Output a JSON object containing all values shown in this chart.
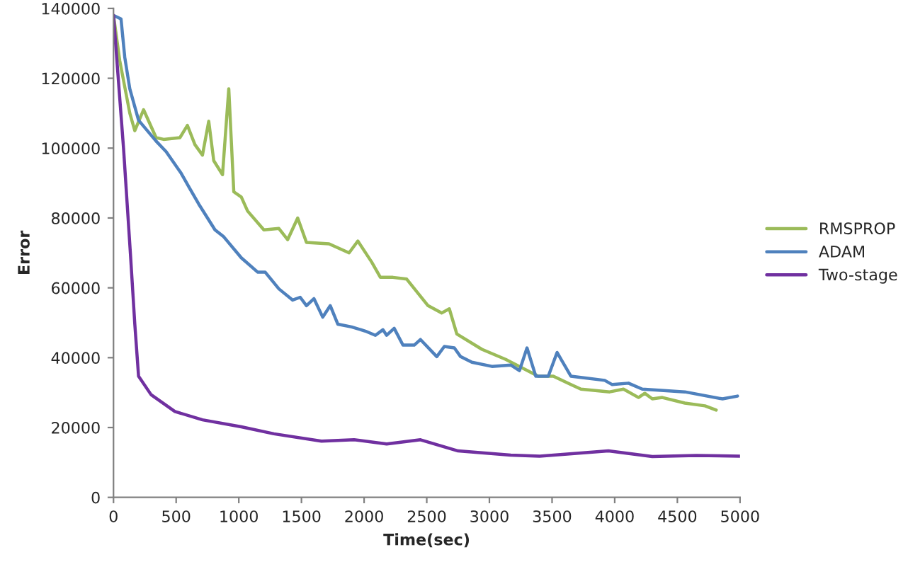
{
  "chart_data": {
    "type": "line",
    "xlabel": "Time(sec)",
    "ylabel": "Error",
    "xlim": [
      0,
      5000
    ],
    "ylim": [
      0,
      140000
    ],
    "xticks": [
      0,
      500,
      1000,
      1500,
      2000,
      2500,
      3000,
      3500,
      4000,
      4500,
      5000
    ],
    "yticks": [
      0,
      20000,
      40000,
      60000,
      80000,
      100000,
      120000,
      140000
    ],
    "grid": false,
    "legend": "right",
    "marker": "none",
    "line_style": "solid",
    "series": [
      {
        "name": "RMSPROP",
        "color": "#9bbb59",
        "x": [
          0,
          50,
          130,
          170,
          240,
          340,
          400,
          530,
          590,
          650,
          710,
          760,
          800,
          870,
          920,
          960,
          1020,
          1070,
          1200,
          1320,
          1390,
          1470,
          1540,
          1720,
          1880,
          1950,
          2060,
          2130,
          2230,
          2340,
          2510,
          2620,
          2680,
          2740,
          2940,
          3130,
          3390,
          3510,
          3650,
          3730,
          3960,
          4070,
          4190,
          4240,
          4300,
          4380,
          4560,
          4720,
          4810
        ],
        "values": [
          138000,
          125000,
          110000,
          105000,
          111000,
          103000,
          102500,
          103000,
          106500,
          101000,
          98000,
          107700,
          96400,
          92400,
          117000,
          87500,
          86000,
          82000,
          76600,
          77000,
          73800,
          80000,
          73000,
          72600,
          70000,
          73400,
          67400,
          63000,
          63000,
          62500,
          54900,
          52800,
          54000,
          46800,
          42400,
          39500,
          34700,
          34700,
          32300,
          31000,
          30200,
          31000,
          28600,
          29800,
          28200,
          28600,
          27000,
          26200,
          25000
        ]
      },
      {
        "name": "ADAM",
        "color": "#4f81bd",
        "x": [
          0,
          60,
          90,
          130,
          200,
          340,
          420,
          540,
          600,
          680,
          810,
          880,
          1020,
          1150,
          1210,
          1320,
          1430,
          1490,
          1540,
          1600,
          1670,
          1730,
          1790,
          1900,
          2010,
          2090,
          2150,
          2180,
          2240,
          2310,
          2400,
          2450,
          2580,
          2640,
          2720,
          2770,
          2860,
          3020,
          3170,
          3240,
          3300,
          3370,
          3470,
          3540,
          3650,
          3920,
          3980,
          4110,
          4220,
          4560,
          4860,
          4980
        ],
        "values": [
          138000,
          137000,
          126000,
          117000,
          108000,
          102000,
          99000,
          92800,
          89000,
          84000,
          76600,
          74600,
          68600,
          64500,
          64500,
          59700,
          56500,
          57300,
          54900,
          56900,
          51600,
          54900,
          49600,
          48800,
          47600,
          46400,
          48000,
          46400,
          48400,
          43600,
          43600,
          45200,
          40300,
          43200,
          42800,
          40300,
          38700,
          37500,
          37900,
          36300,
          42800,
          34700,
          34700,
          41500,
          34700,
          33500,
          32300,
          32700,
          31000,
          30200,
          28200,
          29000
        ]
      },
      {
        "name": "Two-stage",
        "color": "#7030a0",
        "x": [
          0,
          80,
          135,
          170,
          200,
          300,
          490,
          710,
          1020,
          1280,
          1660,
          1920,
          2180,
          2450,
          2750,
          3170,
          3400,
          3950,
          4300,
          4650,
          5000
        ],
        "values": [
          138000,
          100000,
          69800,
          49600,
          34700,
          29400,
          24600,
          22200,
          20200,
          18200,
          16100,
          16500,
          15300,
          16500,
          13300,
          12100,
          11800,
          13300,
          11700,
          12000,
          11800
        ]
      }
    ]
  }
}
